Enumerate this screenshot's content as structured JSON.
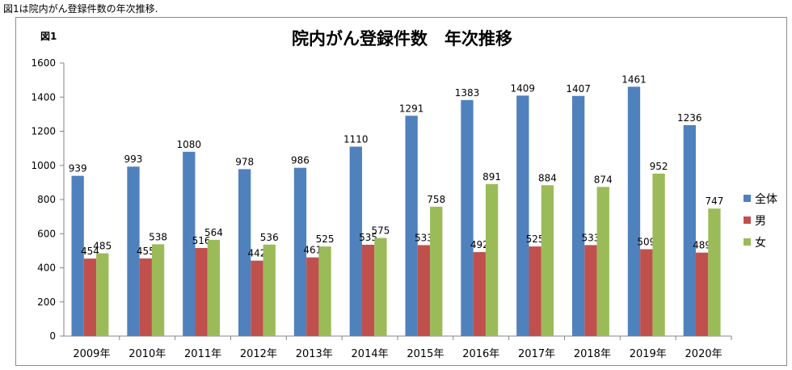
{
  "caption": "図1は院内がん登録件数の年次推移.",
  "figure_label": "図1",
  "chart_data": {
    "type": "bar",
    "title": "院内がん登録件数　年次推移",
    "categories": [
      "2009年",
      "2010年",
      "2011年",
      "2012年",
      "2013年",
      "2014年",
      "2015年",
      "2016年",
      "2017年",
      "2018年",
      "2019年",
      "2020年"
    ],
    "series": [
      {
        "name": "全体",
        "color": "#4F81BD",
        "values": [
          939,
          993,
          1080,
          978,
          986,
          1110,
          1291,
          1383,
          1409,
          1407,
          1461,
          1236
        ]
      },
      {
        "name": "男",
        "color": "#C0504D",
        "values": [
          454,
          455,
          516,
          442,
          461,
          535,
          533,
          492,
          525,
          533,
          509,
          489
        ]
      },
      {
        "name": "女",
        "color": "#9BBB59",
        "values": [
          485,
          538,
          564,
          536,
          525,
          575,
          758,
          891,
          884,
          874,
          952,
          747
        ]
      }
    ],
    "y_ticks": [
      "0",
      "200",
      "400",
      "600",
      "800",
      "1000",
      "1200",
      "1400",
      "1600"
    ],
    "ylim": [
      0,
      1600
    ],
    "grid": false,
    "legend_position": "right"
  }
}
